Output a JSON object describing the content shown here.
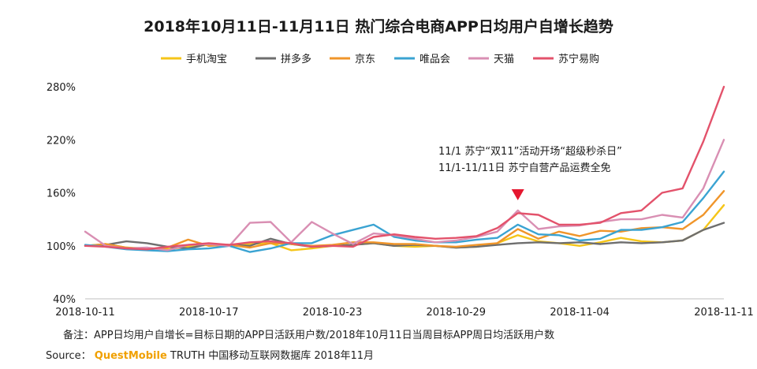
{
  "chart_data": {
    "type": "line",
    "title": "2018年10月11日-11月11日 热门综合电商APP日均用户自增长趋势",
    "xlabel": "",
    "ylabel": "",
    "x": [
      "2018-10-11",
      "2018-10-12",
      "2018-10-13",
      "2018-10-14",
      "2018-10-15",
      "2018-10-16",
      "2018-10-17",
      "2018-10-18",
      "2018-10-19",
      "2018-10-20",
      "2018-10-21",
      "2018-10-22",
      "2018-10-23",
      "2018-10-24",
      "2018-10-25",
      "2018-10-26",
      "2018-10-27",
      "2018-10-28",
      "2018-10-29",
      "2018-10-30",
      "2018-10-31",
      "2018-11-01",
      "2018-11-02",
      "2018-11-03",
      "2018-11-04",
      "2018-11-05",
      "2018-11-06",
      "2018-11-07",
      "2018-11-08",
      "2018-11-09",
      "2018-11-10",
      "2018-11-11"
    ],
    "x_tick_labels": [
      "2018-10-11",
      "2018-10-17",
      "2018-10-23",
      "2018-10-29",
      "2018-11-04",
      "2018-11-11"
    ],
    "x_tick_index": [
      0,
      6,
      12,
      18,
      24,
      31
    ],
    "y_ticks": [
      "40%",
      "100%",
      "160%",
      "220%",
      "280%"
    ],
    "y_tick_values": [
      40,
      100,
      160,
      220,
      280
    ],
    "ylim": [
      40,
      280
    ],
    "grid": false,
    "legend_position": "top",
    "series": [
      {
        "name": "手机淘宝",
        "color": "#f5c518",
        "values": [
          100,
          102,
          98,
          97,
          96,
          99,
          101,
          100,
          102,
          103,
          95,
          97,
          100,
          101,
          103,
          100,
          99,
          100,
          98,
          99,
          103,
          112,
          105,
          103,
          100,
          104,
          109,
          105,
          104,
          106,
          118,
          146
        ]
      },
      {
        "name": "拼多多",
        "color": "#6e6e6e",
        "values": [
          100,
          101,
          105,
          103,
          99,
          97,
          102,
          101,
          100,
          108,
          102,
          99,
          100,
          101,
          103,
          100,
          101,
          100,
          98,
          99,
          101,
          103,
          104,
          103,
          104,
          102,
          104,
          103,
          104,
          106,
          118,
          126
        ]
      },
      {
        "name": "京东",
        "color": "#f0952a",
        "values": [
          100,
          102,
          98,
          96,
          98,
          107,
          100,
          101,
          98,
          103,
          102,
          100,
          101,
          104,
          104,
          102,
          102,
          100,
          99,
          101,
          103,
          119,
          108,
          116,
          111,
          117,
          116,
          120,
          121,
          119,
          135,
          162
        ]
      },
      {
        "name": "唯品会",
        "color": "#3aa3d2",
        "values": [
          101,
          99,
          96,
          95,
          94,
          96,
          97,
          100,
          93,
          97,
          103,
          103,
          112,
          118,
          124,
          110,
          106,
          104,
          104,
          107,
          109,
          124,
          113,
          112,
          106,
          108,
          118,
          118,
          121,
          127,
          154,
          184
        ]
      },
      {
        "name": "天猫",
        "color": "#d98fb3",
        "values": [
          116,
          100,
          97,
          98,
          95,
          101,
          102,
          100,
          126,
          127,
          104,
          127,
          114,
          102,
          114,
          112,
          108,
          104,
          106,
          110,
          116,
          140,
          119,
          122,
          123,
          127,
          130,
          130,
          135,
          132,
          165,
          220
        ]
      },
      {
        "name": "苏宁易购",
        "color": "#e3526b",
        "values": [
          100,
          99,
          97,
          96,
          99,
          101,
          103,
          101,
          104,
          105,
          103,
          99,
          100,
          99,
          110,
          113,
          110,
          108,
          109,
          111,
          120,
          137,
          135,
          124,
          124,
          126,
          137,
          140,
          160,
          165,
          218,
          280
        ]
      }
    ],
    "annotation": {
      "index": 21,
      "lines": [
        "11/1 苏宁“双11”活动开场“超级秒杀日”",
        "11/1-11/11日 苏宁自营产品运费全免"
      ],
      "marker_color": "#e5172f"
    }
  },
  "footer": {
    "note": "备注：APP日均用户自增长=目标日期的APP日活跃用户数/2018年10月11日当周目标APP周日均活跃用户数",
    "source_prefix": "Source：",
    "source_brand": "QuestMobile",
    "source_rest": "TRUTH 中国移动互联网数据库 2018年11月"
  }
}
